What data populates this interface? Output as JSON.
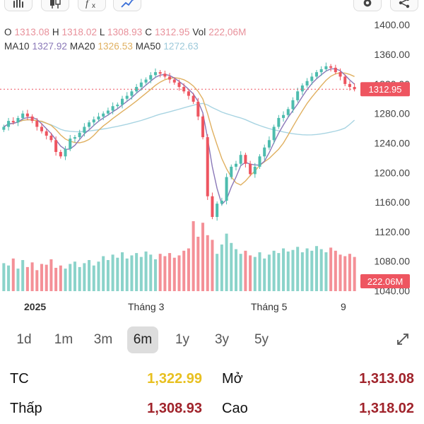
{
  "toolbar": {
    "items": [
      "hand-icon",
      "candle-icon",
      "indicator-icon",
      "drawing-icon",
      "settings-icon",
      "share-icon"
    ]
  },
  "ohlc": {
    "o_label": "O",
    "o_value": "1313.08",
    "h_label": "H",
    "h_value": "1318.02",
    "l_label": "L",
    "l_value": "1308.93",
    "c_label": "C",
    "c_value": "1312.95",
    "vol_label": "Vol",
    "vol_value": "222,06M"
  },
  "ma": {
    "ma10_label": "MA10",
    "ma10_value": "1327.92",
    "ma20_label": "MA20",
    "ma20_value": "1326.53",
    "ma50_label": "MA50",
    "ma50_value": "1272.63"
  },
  "colors": {
    "up": "#4dbcae",
    "down": "#ee5560",
    "ma10": "#8a78b8",
    "ma20": "#e0b060",
    "ma50": "#a8d4e2",
    "price_tag": "#ee5560",
    "tc": "#e8c020",
    "value_red": "#a0232b"
  },
  "chart_data": {
    "type": "candlestick",
    "price_axis_ticks": [
      "1400.00",
      "1360.00",
      "1320.00",
      "1280.00",
      "1240.00",
      "1200.00",
      "1160.00",
      "1120.00",
      "1080.00",
      "1040.00"
    ],
    "price_range": [
      1030,
      1405
    ],
    "current_price_tag": "1312.95",
    "current_price": 1312.95,
    "current_volume_tag": "222.06M",
    "x_labels": [
      "2025",
      "Tháng 3",
      "Tháng 5",
      "9"
    ],
    "close_path": [
      1262,
      1270,
      1268,
      1274,
      1280,
      1276,
      1270,
      1262,
      1256,
      1250,
      1244,
      1228,
      1222,
      1232,
      1246,
      1248,
      1254,
      1262,
      1268,
      1272,
      1276,
      1280,
      1284,
      1290,
      1292,
      1300,
      1304,
      1310,
      1316,
      1322,
      1326,
      1332,
      1336,
      1334,
      1330,
      1326,
      1322,
      1316,
      1310,
      1304,
      1296,
      1276,
      1248,
      1168,
      1140,
      1158,
      1162,
      1194,
      1208,
      1212,
      1224,
      1212,
      1198,
      1208,
      1222,
      1234,
      1244,
      1262,
      1274,
      1278,
      1286,
      1298,
      1310,
      1318,
      1324,
      1330,
      1336,
      1340,
      1344,
      1342,
      1336,
      1330,
      1320,
      1316,
      1313
    ],
    "volumes": [
      0.36,
      0.33,
      0.42,
      0.29,
      0.4,
      0.31,
      0.37,
      0.27,
      0.35,
      0.34,
      0.41,
      0.3,
      0.33,
      0.29,
      0.35,
      0.38,
      0.31,
      0.36,
      0.4,
      0.33,
      0.38,
      0.45,
      0.4,
      0.47,
      0.43,
      0.5,
      0.42,
      0.46,
      0.49,
      0.44,
      0.51,
      0.47,
      0.41,
      0.48,
      0.45,
      0.49,
      0.43,
      0.46,
      0.52,
      0.55,
      0.9,
      0.7,
      0.88,
      0.72,
      0.66,
      0.48,
      0.6,
      0.74,
      0.62,
      0.54,
      0.48,
      0.52,
      0.46,
      0.44,
      0.5,
      0.42,
      0.47,
      0.52,
      0.49,
      0.55,
      0.51,
      0.53,
      0.57,
      0.5,
      0.55,
      0.52,
      0.58,
      0.54,
      0.5,
      0.56,
      0.52,
      0.47,
      0.45,
      0.48,
      0.44
    ]
  },
  "ranges": {
    "items": [
      "1d",
      "1m",
      "3m",
      "6m",
      "1y",
      "3y",
      "5y"
    ],
    "active": "6m"
  },
  "stats": {
    "tc_label": "TC",
    "tc_value": "1,322.99",
    "open_label": "Mở",
    "open_value": "1,313.08",
    "low_label": "Thấp",
    "low_value": "1,308.93",
    "high_label": "Cao",
    "high_value": "1,318.02"
  }
}
